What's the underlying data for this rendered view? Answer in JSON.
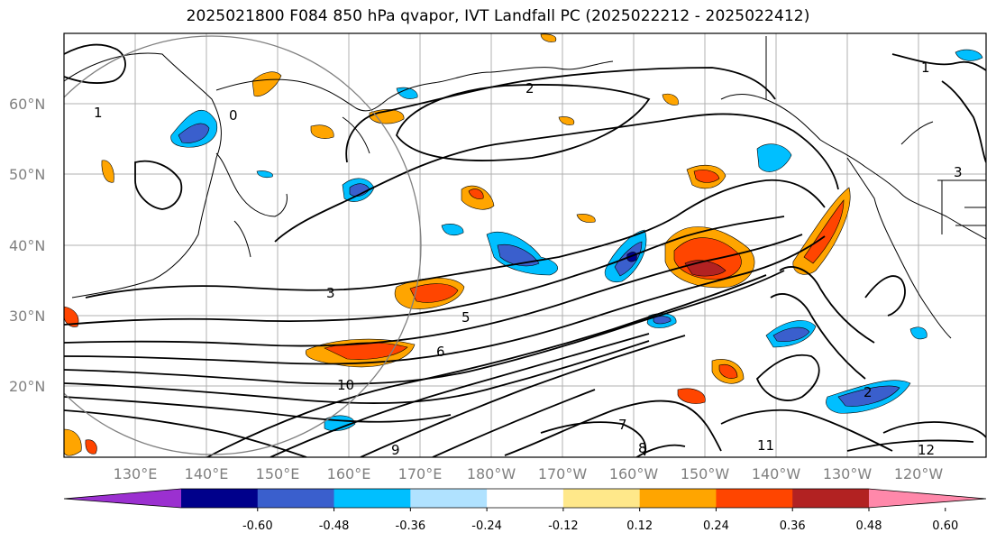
{
  "title": "2025021800 F084 850 hPa qvapor, IVT Landfall PC (2025022212 - 2025022412)",
  "lat_ticks": [
    "60°N",
    "50°N",
    "40°N",
    "30°N",
    "20°N"
  ],
  "lon_ticks": [
    "130°E",
    "140°E",
    "150°E",
    "160°E",
    "170°E",
    "180°W",
    "170°W",
    "160°W",
    "150°W",
    "140°W",
    "130°W",
    "120°W"
  ],
  "colorbar": {
    "labels": [
      "-0.60",
      "-0.48",
      "-0.36",
      "-0.24",
      "-0.12",
      "0.12",
      "0.24",
      "0.36",
      "0.48",
      "0.60"
    ],
    "colors": [
      "#9b30d0",
      "#00008b",
      "#3a5fcd",
      "#00bfff",
      "#b0e2ff",
      "#ffffff",
      "#ffe88a",
      "#ffa500",
      "#ff4500",
      "#b22222",
      "#ff88aa"
    ]
  },
  "contour_labels": [
    "0",
    "1",
    "2",
    "3",
    "5",
    "6",
    "7",
    "8",
    "9",
    "10",
    "11",
    "12",
    "3",
    "2",
    "1"
  ]
}
